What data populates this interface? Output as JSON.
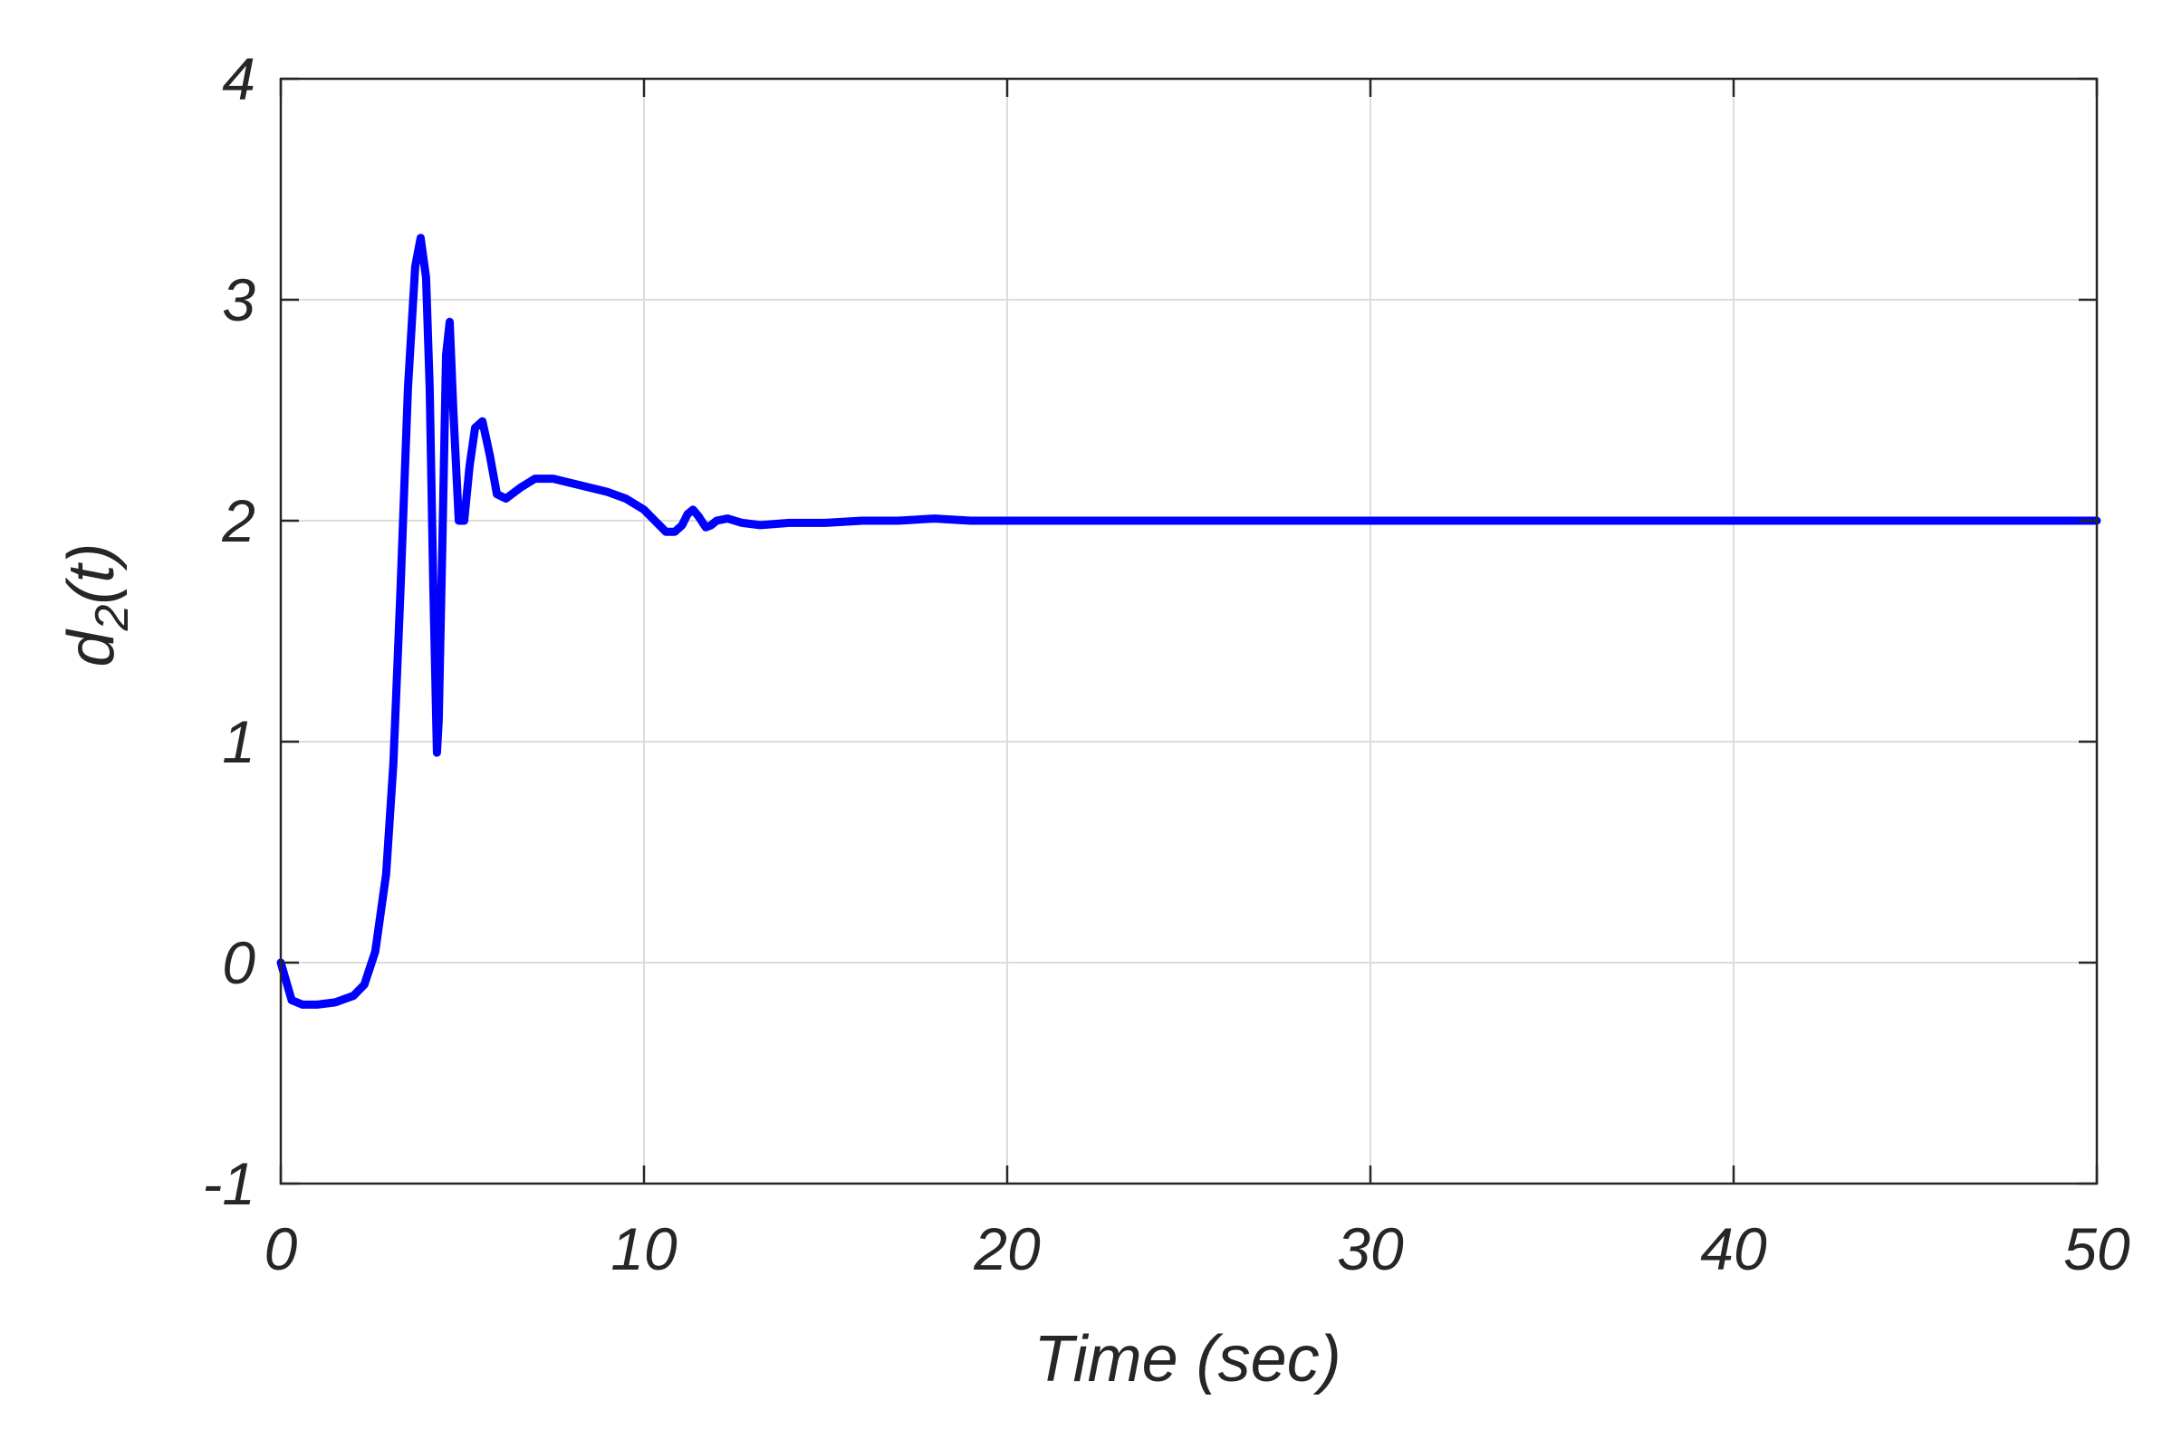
{
  "chart_data": {
    "type": "line",
    "title": "",
    "xlabel": "Time (sec)",
    "ylabel": {
      "base": "d",
      "subscript": "2",
      "suffix": "(t)"
    },
    "xlim": [
      0,
      50
    ],
    "ylim": [
      -1,
      4
    ],
    "xticks": [
      0,
      10,
      20,
      30,
      40,
      50
    ],
    "xtick_labels": [
      "0",
      "10",
      "20",
      "30",
      "40",
      "50"
    ],
    "yticks": [
      -1,
      0,
      1,
      2,
      3,
      4
    ],
    "ytick_labels": [
      "-1",
      "0",
      "1",
      "2",
      "3",
      "4"
    ],
    "grid": true,
    "legend": false,
    "line_color": "#0000ff",
    "grid_color": "#dcdcdc",
    "axis_color": "#262626",
    "series": [
      {
        "x": [
          0,
          0.3,
          0.6,
          1.0,
          1.5,
          2.0,
          2.3,
          2.6,
          2.9,
          3.1,
          3.3,
          3.5,
          3.7,
          3.85,
          4.0,
          4.1,
          4.2,
          4.3,
          4.35,
          4.45,
          4.55,
          4.65,
          4.75,
          4.9,
          5.05,
          5.2,
          5.35,
          5.55,
          5.75,
          5.95,
          6.2,
          6.6,
          7.0,
          7.5,
          8.0,
          8.5,
          9.0,
          9.5,
          10.0,
          10.3,
          10.6,
          10.85,
          11.05,
          11.2,
          11.35,
          11.5,
          11.7,
          11.85,
          12.0,
          12.3,
          12.7,
          13.2,
          14.0,
          15.0,
          16.0,
          17.0,
          18.0,
          19.0,
          20.0,
          30.0,
          40.0,
          50.0
        ],
        "y": [
          0.0,
          -0.17,
          -0.19,
          -0.19,
          -0.18,
          -0.15,
          -0.1,
          0.05,
          0.4,
          0.9,
          1.7,
          2.6,
          3.15,
          3.28,
          3.1,
          2.6,
          1.7,
          0.95,
          1.1,
          1.9,
          2.75,
          2.9,
          2.5,
          2.0,
          2.0,
          2.25,
          2.42,
          2.45,
          2.3,
          2.12,
          2.1,
          2.15,
          2.19,
          2.19,
          2.17,
          2.15,
          2.13,
          2.1,
          2.05,
          2.0,
          1.95,
          1.95,
          1.98,
          2.03,
          2.05,
          2.02,
          1.97,
          1.98,
          2.0,
          2.01,
          1.99,
          1.98,
          1.99,
          1.99,
          2.0,
          2.0,
          2.01,
          2.0,
          2.0,
          2.0,
          2.0,
          2.0
        ]
      }
    ]
  }
}
